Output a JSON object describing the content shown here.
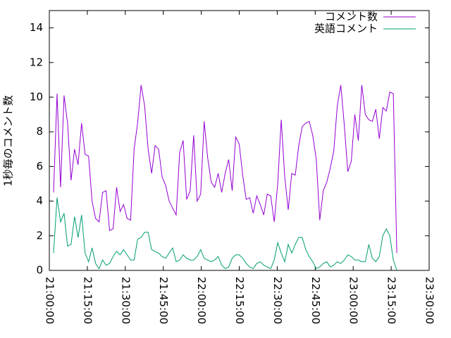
{
  "chart_data": {
    "type": "line",
    "x": [
      "21:01:40",
      "21:03:03",
      "21:04:26",
      "21:05:49",
      "21:07:12",
      "21:08:35",
      "21:09:58",
      "21:11:21",
      "21:12:44",
      "21:14:07",
      "21:15:30",
      "21:16:53",
      "21:18:16",
      "21:19:39",
      "21:21:02",
      "21:22:25",
      "21:23:48",
      "21:25:11",
      "21:26:34",
      "21:27:57",
      "21:29:20",
      "21:30:43",
      "21:32:06",
      "21:33:29",
      "21:34:52",
      "21:36:15",
      "21:37:38",
      "21:39:01",
      "21:40:24",
      "21:41:47",
      "21:43:10",
      "21:44:33",
      "21:45:56",
      "21:47:19",
      "21:48:42",
      "21:50:05",
      "21:51:28",
      "21:52:51",
      "21:54:14",
      "21:55:37",
      "21:57:00",
      "21:58:23",
      "21:59:46",
      "22:01:09",
      "22:02:32",
      "22:03:55",
      "22:05:18",
      "22:06:41",
      "22:08:04",
      "22:09:27",
      "22:10:50",
      "22:12:13",
      "22:13:36",
      "22:14:59",
      "22:16:22",
      "22:17:45",
      "22:19:08",
      "22:20:31",
      "22:21:54",
      "22:23:17",
      "22:24:40",
      "22:26:03",
      "22:27:26",
      "22:28:49",
      "22:30:12",
      "22:31:35",
      "22:32:58",
      "22:34:21",
      "22:35:44",
      "22:37:07",
      "22:38:30",
      "22:39:53",
      "22:41:16",
      "22:42:39",
      "22:44:02",
      "22:45:25",
      "22:46:48",
      "22:48:11",
      "22:49:34",
      "22:50:57",
      "22:52:20",
      "22:53:43",
      "22:55:06",
      "22:56:29",
      "22:57:52",
      "22:59:15",
      "23:00:38",
      "23:02:01",
      "23:03:24",
      "23:04:47",
      "23:06:10",
      "23:07:33",
      "23:08:56",
      "23:10:19",
      "23:11:42",
      "23:13:05",
      "23:14:28",
      "23:15:51",
      "23:17:14"
    ],
    "series": [
      {
        "name": "コメント数",
        "color": "#9400d3",
        "values": [
          4.5,
          10.2,
          4.8,
          10.1,
          8.5,
          5.2,
          7,
          6.1,
          8.5,
          6.7,
          6.6,
          4,
          3,
          2.8,
          4.5,
          4.6,
          2.3,
          2.4,
          4.8,
          3.4,
          3.8,
          3,
          2.9,
          7,
          8.5,
          10.7,
          9.5,
          7,
          5.6,
          7.2,
          7,
          5.4,
          4.9,
          4,
          3.6,
          3.2,
          6.8,
          7.5,
          4.1,
          4.6,
          7.8,
          4,
          4.4,
          8.6,
          6.5,
          5.1,
          4.8,
          5.6,
          4.5,
          5.6,
          6.4,
          4.6,
          7.7,
          7.3,
          5.5,
          4.1,
          4.2,
          3.3,
          4.3,
          3.8,
          3.2,
          4.4,
          4.3,
          2.8,
          5,
          8.7,
          5.4,
          3.5,
          5.6,
          5.5,
          7.2,
          8.3,
          8.5,
          8.6,
          7.8,
          6.4,
          2.9,
          4.6,
          5.1,
          5.9,
          6.9,
          9.5,
          10.7,
          8.4,
          5.7,
          6.3,
          9,
          7.5,
          10.7,
          9,
          8.7,
          8.6,
          9.3,
          7.6,
          9.4,
          9.2,
          10.3,
          10.2,
          1
        ]
      },
      {
        "name": "英語コメント",
        "color": "#009e73",
        "values": [
          1,
          4.2,
          2.8,
          3.3,
          1.4,
          1.5,
          3.1,
          1.9,
          3.2,
          1,
          0.5,
          1.3,
          0.4,
          0.1,
          0.6,
          0.3,
          0.4,
          0.8,
          1.1,
          0.9,
          1.2,
          0.9,
          0.6,
          0.6,
          1.8,
          1.9,
          2.2,
          2.2,
          1.2,
          1.1,
          1,
          0.8,
          0.7,
          1,
          1.3,
          0.5,
          0.6,
          0.9,
          0.7,
          0.6,
          0.6,
          0.8,
          1.2,
          0.7,
          0.6,
          0.5,
          0.6,
          0.8,
          0.3,
          0.1,
          0.2,
          0.7,
          0.9,
          0.9,
          0.7,
          0.4,
          0.2,
          0.1,
          0.4,
          0.5,
          0.3,
          0.2,
          0.1,
          0.6,
          1.6,
          1,
          0.5,
          1.5,
          1,
          1.5,
          1.9,
          1.9,
          1.2,
          0.8,
          0.5,
          0.1,
          0.2,
          0.4,
          0.5,
          0.2,
          0.3,
          0.5,
          0.4,
          0.6,
          0.9,
          0.8,
          0.6,
          0.6,
          0.5,
          0.5,
          1.5,
          0.7,
          0.5,
          0.8,
          2,
          2.4,
          2,
          0.6,
          0
        ]
      }
    ],
    "ylabel": "1秒毎のコメント数",
    "xlim": [
      "21:00:00",
      "23:30:00"
    ],
    "xticks": [
      "21:00:00",
      "21:15:00",
      "21:30:00",
      "21:45:00",
      "22:00:00",
      "22:15:00",
      "22:30:00",
      "22:45:00",
      "23:00:00",
      "23:15:00",
      "23:30:00"
    ],
    "ylim": [
      0,
      15
    ],
    "yticks": [
      0,
      2,
      4,
      6,
      8,
      10,
      12,
      14
    ],
    "legend": "top-right",
    "grid": false
  }
}
